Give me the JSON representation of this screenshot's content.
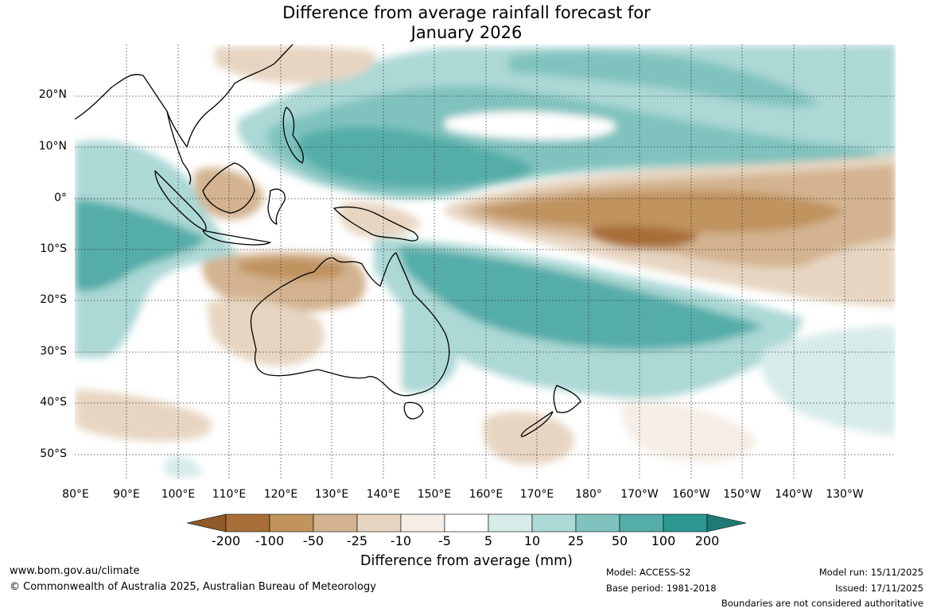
{
  "title": {
    "line1": "Difference from average rainfall forecast for",
    "line2": "January 2026"
  },
  "latitude_labels": [
    "20°N",
    "10°N",
    "0°",
    "10°S",
    "20°S",
    "30°S",
    "40°S",
    "50°S"
  ],
  "longitude_labels": [
    "80°E",
    "90°E",
    "100°E",
    "110°E",
    "120°E",
    "130°E",
    "140°E",
    "150°E",
    "160°E",
    "170°E",
    "180°",
    "170°W",
    "160°W",
    "150°W",
    "140°W",
    "130°W"
  ],
  "colorbar": {
    "title": "Difference from average (mm)",
    "labels": [
      "-200",
      "-100",
      "-50",
      "-25",
      "-10",
      "-5",
      "5",
      "10",
      "25",
      "50",
      "100",
      "200"
    ],
    "colors": [
      "#a86e37",
      "#c0935f",
      "#d3b390",
      "#e7d5c1",
      "#f4eee6",
      "#ffffff",
      "#d7ebe9",
      "#acd8d5",
      "#80c2be",
      "#55ada9",
      "#2d9892"
    ],
    "extend_low_color": "#8f5a2a",
    "extend_high_color": "#1f7a75"
  },
  "footer": {
    "website": "www.bom.gov.au/climate",
    "copyright": "© Commonwealth of Australia 2025, Australian Bureau of Meteorology",
    "model": "Model: ACCESS-S2",
    "base_period": "Base period: 1981-2018",
    "model_run": "Model run: 15/11/2025",
    "issued": "Issued: 17/11/2025",
    "disclaimer": "Boundaries are not considered authoritative"
  }
}
